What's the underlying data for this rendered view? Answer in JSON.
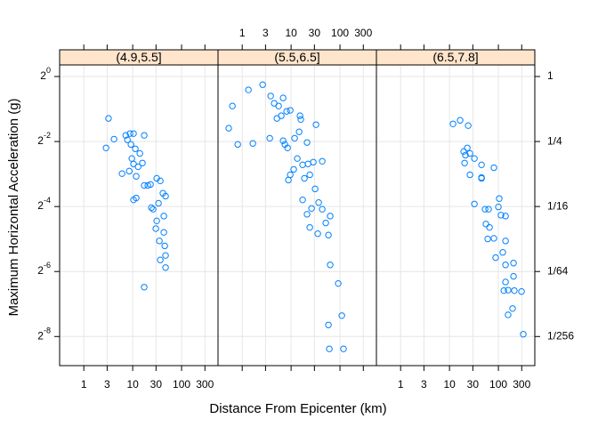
{
  "chart_data": {
    "type": "scatter",
    "xlabel": "Distance From Epicenter (km)",
    "ylabel": "Maximum Horizontal Acceleration (g)",
    "x_log": true,
    "y_log": true,
    "grid": true,
    "color": "#0080ff",
    "xlim": [
      0.32,
      556
    ],
    "ylim": [
      0.0021,
      1.28
    ],
    "xticks": [
      1,
      3,
      10,
      30,
      100,
      300
    ],
    "yticks": [
      {
        "value": 1,
        "label": "2^0"
      },
      {
        "value": 0.25,
        "label": "2^-2"
      },
      {
        "value": 0.0625,
        "label": "2^-4"
      },
      {
        "value": 0.015625,
        "label": "2^-6"
      },
      {
        "value": 0.00390625,
        "label": "2^-8"
      }
    ],
    "y2ticks": [
      1,
      {
        "value": 0.25,
        "label": "1/4"
      },
      {
        "value": 0.0625,
        "label": "1/16"
      },
      {
        "value": 0.015625,
        "label": "1/64"
      },
      {
        "value": 0.00390625,
        "label": "1/256"
      }
    ],
    "panels": [
      {
        "strip": "(4.9,5.5]",
        "x": [
          3.2,
          2.85,
          4.15,
          7.2,
          8.8,
          10.4,
          7.8,
          9.2,
          11.3,
          14,
          17.2,
          9.6,
          10.4,
          12.9,
          15.8,
          6.05,
          8.5,
          11.8,
          17.2,
          20.4,
          11.8,
          10.4,
          31,
          36.6,
          41.5,
          47,
          24.1,
          26.2,
          31,
          43.3,
          29.7,
          43.3,
          35.1,
          45.2,
          47,
          36.6,
          47,
          17.2,
          23.1,
          33.7
        ],
        "values": [
          0.409,
          0.218,
          0.263,
          0.285,
          0.296,
          0.296,
          0.259,
          0.235,
          0.214,
          0.194,
          0.285,
          0.174,
          0.155,
          0.146,
          0.158,
          0.126,
          0.133,
          0.119,
          0.098,
          0.098,
          0.075,
          0.072,
          0.114,
          0.108,
          0.083,
          0.078,
          0.061,
          0.059,
          0.046,
          0.051,
          0.039,
          0.036,
          0.03,
          0.027,
          0.022,
          0.02,
          0.017,
          0.0112,
          0.1,
          0.067
        ]
      },
      {
        "strip": "(5.5,6.5]",
        "x": [
          0.53,
          0.63,
          1.34,
          0.81,
          1.65,
          2.62,
          3.82,
          4.51,
          5.56,
          6.86,
          8.1,
          9.6,
          5.12,
          6.3,
          3.66,
          6.86,
          7.46,
          8.46,
          15.2,
          15.8,
          14.6,
          11.8,
          21.2,
          32.3,
          13.4,
          9.6,
          11.3,
          17.2,
          22.2,
          28.5,
          43.3,
          31,
          36.6,
          18.7,
          17.2,
          21.2,
          26.2,
          43.3,
          63,
          51.2,
          24.1,
          35.1,
          58,
          63,
          92,
          109,
          58,
          60.5,
          118,
          24.1,
          8.8
        ],
        "values": [
          0.332,
          0.533,
          0.752,
          0.235,
          0.24,
          0.84,
          0.66,
          0.565,
          0.533,
          0.633,
          0.476,
          0.486,
          0.409,
          0.433,
          0.268,
          0.254,
          0.235,
          0.218,
          0.433,
          0.4,
          0.307,
          0.268,
          0.245,
          0.358,
          0.174,
          0.123,
          0.138,
          0.152,
          0.155,
          0.161,
          0.164,
          0.091,
          0.068,
          0.114,
          0.072,
          0.053,
          0.06,
          0.059,
          0.051,
          0.044,
          0.04,
          0.035,
          0.034,
          0.018,
          0.0121,
          0.0061,
          0.005,
          0.003,
          0.003,
          0.123,
          0.11
        ]
      },
      {
        "strip": "(6.5,7.8]",
        "x": [
          11.8,
          16.5,
          24.1,
          23.1,
          19.5,
          21.2,
          26.2,
          20.4,
          32.3,
          45.2,
          81,
          26.2,
          45.2,
          32.3,
          53.4,
          63,
          100,
          113,
          140,
          55.6,
          65.8,
          60.5,
          81,
          140,
          123,
          88,
          204,
          140,
          204,
          140,
          158,
          212,
          297,
          158,
          195,
          323,
          129,
          104,
          45.2
        ],
        "values": [
          0.364,
          0.393,
          0.351,
          0.218,
          0.202,
          0.187,
          0.194,
          0.158,
          0.174,
          0.152,
          0.143,
          0.123,
          0.116,
          0.066,
          0.059,
          0.059,
          0.062,
          0.052,
          0.051,
          0.043,
          0.04,
          0.0313,
          0.0317,
          0.03,
          0.0235,
          0.021,
          0.0187,
          0.018,
          0.0141,
          0.0125,
          0.0105,
          0.0104,
          0.0102,
          0.0062,
          0.0071,
          0.0041,
          0.0104,
          0.074,
          0.114
        ]
      }
    ]
  }
}
